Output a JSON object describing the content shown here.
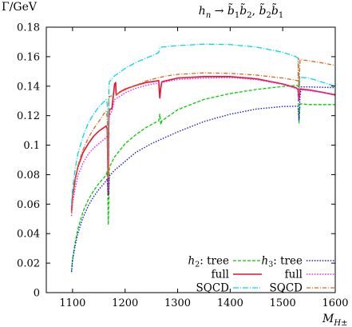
{
  "chart_data": {
    "type": "line",
    "title": "h_n → b̃₁b̃₂, b̃₂b̃₁",
    "title_parts": {
      "h": "h",
      "n": "n",
      "arrow": "→",
      "b": "b̃",
      "sub1": "1",
      "sub2": "2",
      "sep": ", "
    },
    "ylabel": "Γ/GeV",
    "xlabel_parts": {
      "M": "M",
      "sub": "H±"
    },
    "xlim": [
      1050,
      1600
    ],
    "ylim": [
      0,
      0.18
    ],
    "xticks": [
      1100,
      1200,
      1300,
      1400,
      1500,
      1600
    ],
    "yticks": [
      0,
      0.02,
      0.04,
      0.06,
      0.08,
      0.1,
      0.12,
      0.14,
      0.16,
      0.18
    ],
    "ytick_labels": [
      "0",
      "0.02",
      "0.04",
      "0.06",
      "0.08",
      "0.1",
      "0.12",
      "0.14",
      "0.16",
      "0.18"
    ],
    "grid": false,
    "legend_position": "bottom-right",
    "legend_groups": [
      {
        "label_h": "h",
        "label_sub": "2",
        "label_suffix": ": tree"
      },
      {
        "label_h": "h",
        "label_sub": "3",
        "label_suffix": ": tree"
      }
    ],
    "series": [
      {
        "name": "h2: tree",
        "legend_label": "tree",
        "group": 0,
        "color": "#00cc00",
        "dash": "4,2",
        "width": 1.3,
        "points": [
          [
            1098,
            0.014
          ],
          [
            1100,
            0.023
          ],
          [
            1105,
            0.034
          ],
          [
            1110,
            0.043
          ],
          [
            1120,
            0.055
          ],
          [
            1130,
            0.063
          ],
          [
            1140,
            0.069
          ],
          [
            1150,
            0.074
          ],
          [
            1160,
            0.078
          ],
          [
            1164,
            0.08
          ],
          [
            1166,
            0.082
          ],
          [
            1167,
            0.07
          ],
          [
            1168,
            0.046
          ],
          [
            1169,
            0.06
          ],
          [
            1170,
            0.085
          ],
          [
            1180,
            0.092
          ],
          [
            1200,
            0.101
          ],
          [
            1220,
            0.107
          ],
          [
            1240,
            0.112
          ],
          [
            1260,
            0.1158
          ],
          [
            1264,
            0.1165
          ],
          [
            1266,
            0.121
          ],
          [
            1268,
            0.114
          ],
          [
            1270,
            0.1165
          ],
          [
            1300,
            0.124
          ],
          [
            1350,
            0.131
          ],
          [
            1400,
            0.135
          ],
          [
            1450,
            0.1378
          ],
          [
            1500,
            0.1398
          ],
          [
            1525,
            0.1405
          ],
          [
            1529,
            0.1405
          ],
          [
            1531,
            0.115
          ],
          [
            1533,
            0.128
          ],
          [
            1550,
            0.1275
          ],
          [
            1600,
            0.1275
          ]
        ]
      },
      {
        "name": "full",
        "legend_label": "full",
        "group": 0,
        "color": "#e8112d",
        "dash": "",
        "width": 1.6,
        "points": [
          [
            1098,
            0.055
          ],
          [
            1100,
            0.065
          ],
          [
            1105,
            0.077
          ],
          [
            1110,
            0.085
          ],
          [
            1120,
            0.095
          ],
          [
            1130,
            0.101
          ],
          [
            1140,
            0.106
          ],
          [
            1150,
            0.1095
          ],
          [
            1160,
            0.112
          ],
          [
            1164,
            0.113
          ],
          [
            1166,
            0.111
          ],
          [
            1167,
            0.09
          ],
          [
            1168,
            0.066
          ],
          [
            1169,
            0.118
          ],
          [
            1170,
            0.124
          ],
          [
            1175,
            0.125
          ],
          [
            1180,
            0.1415
          ],
          [
            1182,
            0.1425
          ],
          [
            1183,
            0.134
          ],
          [
            1190,
            0.136
          ],
          [
            1200,
            0.138
          ],
          [
            1220,
            0.1405
          ],
          [
            1240,
            0.1425
          ],
          [
            1260,
            0.1435
          ],
          [
            1264,
            0.1438
          ],
          [
            1266,
            0.132
          ],
          [
            1268,
            0.139
          ],
          [
            1270,
            0.143
          ],
          [
            1300,
            0.1455
          ],
          [
            1350,
            0.1465
          ],
          [
            1400,
            0.1465
          ],
          [
            1450,
            0.145
          ],
          [
            1500,
            0.1415
          ],
          [
            1525,
            0.139
          ],
          [
            1529,
            0.138
          ],
          [
            1531,
            0.13
          ],
          [
            1533,
            0.138
          ],
          [
            1550,
            0.1375
          ],
          [
            1580,
            0.1355
          ],
          [
            1600,
            0.134
          ]
        ]
      },
      {
        "name": "SQCD",
        "legend_label": "SQCD",
        "group": 0,
        "color": "#00d8e8",
        "dash": "7,2,1,2",
        "width": 1.3,
        "points": [
          [
            1098,
            0.06
          ],
          [
            1100,
            0.07
          ],
          [
            1105,
            0.084
          ],
          [
            1110,
            0.094
          ],
          [
            1120,
            0.106
          ],
          [
            1130,
            0.115
          ],
          [
            1140,
            0.121
          ],
          [
            1150,
            0.126
          ],
          [
            1160,
            0.1295
          ],
          [
            1164,
            0.131
          ],
          [
            1166,
            0.128
          ],
          [
            1167,
            0.105
          ],
          [
            1168,
            0.08
          ],
          [
            1169,
            0.138
          ],
          [
            1170,
            0.143
          ],
          [
            1180,
            0.147
          ],
          [
            1200,
            0.152
          ],
          [
            1220,
            0.156
          ],
          [
            1240,
            0.159
          ],
          [
            1260,
            0.162
          ],
          [
            1264,
            0.163
          ],
          [
            1266,
            0.1655
          ],
          [
            1268,
            0.1665
          ],
          [
            1270,
            0.1665
          ],
          [
            1300,
            0.1675
          ],
          [
            1350,
            0.1685
          ],
          [
            1400,
            0.1682
          ],
          [
            1450,
            0.1665
          ],
          [
            1500,
            0.163
          ],
          [
            1525,
            0.16
          ],
          [
            1529,
            0.159
          ],
          [
            1531,
            0.135
          ],
          [
            1533,
            0.146
          ],
          [
            1550,
            0.1455
          ],
          [
            1600,
            0.14
          ]
        ]
      },
      {
        "name": "h3: tree",
        "legend_label": "tree",
        "group": 1,
        "color": "#1a1ad8",
        "dash": "1.5,1.8",
        "width": 1.4,
        "points": [
          [
            1098,
            0.014
          ],
          [
            1100,
            0.022
          ],
          [
            1105,
            0.032
          ],
          [
            1110,
            0.04
          ],
          [
            1120,
            0.051
          ],
          [
            1130,
            0.059
          ],
          [
            1140,
            0.065
          ],
          [
            1150,
            0.07
          ],
          [
            1160,
            0.074
          ],
          [
            1164,
            0.076
          ],
          [
            1166,
            0.077
          ],
          [
            1167,
            0.07
          ],
          [
            1168,
            0.066
          ],
          [
            1169,
            0.07
          ],
          [
            1170,
            0.079
          ],
          [
            1180,
            0.083
          ],
          [
            1200,
            0.089
          ],
          [
            1220,
            0.095
          ],
          [
            1250,
            0.101
          ],
          [
            1300,
            0.109
          ],
          [
            1350,
            0.116
          ],
          [
            1400,
            0.121
          ],
          [
            1450,
            0.1245
          ],
          [
            1500,
            0.1262
          ],
          [
            1525,
            0.1264
          ],
          [
            1529,
            0.1264
          ],
          [
            1531,
            0.117
          ],
          [
            1533,
            0.133
          ],
          [
            1535,
            0.1395
          ],
          [
            1550,
            0.1395
          ],
          [
            1600,
            0.139
          ]
        ]
      },
      {
        "name": "full",
        "legend_label": "full",
        "group": 1,
        "color": "#ee22ee",
        "dash": "1.5,1.8",
        "width": 1.4,
        "points": [
          [
            1098,
            0.052
          ],
          [
            1100,
            0.06
          ],
          [
            1105,
            0.071
          ],
          [
            1110,
            0.079
          ],
          [
            1120,
            0.088
          ],
          [
            1130,
            0.094
          ],
          [
            1140,
            0.098
          ],
          [
            1150,
            0.101
          ],
          [
            1160,
            0.104
          ],
          [
            1164,
            0.105
          ],
          [
            1166,
            0.106
          ],
          [
            1167,
            0.086
          ],
          [
            1168,
            0.07
          ],
          [
            1169,
            0.112
          ],
          [
            1170,
            0.12
          ],
          [
            1175,
            0.123
          ],
          [
            1180,
            0.131
          ],
          [
            1190,
            0.133
          ],
          [
            1200,
            0.1355
          ],
          [
            1220,
            0.1385
          ],
          [
            1240,
            0.1405
          ],
          [
            1260,
            0.142
          ],
          [
            1270,
            0.1425
          ],
          [
            1300,
            0.1445
          ],
          [
            1350,
            0.1455
          ],
          [
            1400,
            0.1458
          ],
          [
            1450,
            0.1445
          ],
          [
            1500,
            0.1412
          ],
          [
            1525,
            0.1385
          ],
          [
            1529,
            0.1378
          ],
          [
            1531,
            0.13
          ],
          [
            1533,
            0.1375
          ],
          [
            1550,
            0.137
          ],
          [
            1580,
            0.1355
          ],
          [
            1600,
            0.1345
          ]
        ]
      },
      {
        "name": "SQCD",
        "legend_label": "SQCD",
        "group": 1,
        "color": "#d96a1c",
        "dash": "5,2,1,2",
        "width": 1.3,
        "points": [
          [
            1098,
            0.054
          ],
          [
            1100,
            0.064
          ],
          [
            1105,
            0.076
          ],
          [
            1110,
            0.086
          ],
          [
            1120,
            0.097
          ],
          [
            1130,
            0.105
          ],
          [
            1140,
            0.111
          ],
          [
            1150,
            0.116
          ],
          [
            1160,
            0.1215
          ],
          [
            1164,
            0.123
          ],
          [
            1166,
            0.119
          ],
          [
            1167,
            0.1
          ],
          [
            1168,
            0.078
          ],
          [
            1169,
            0.13
          ],
          [
            1170,
            0.133
          ],
          [
            1180,
            0.134
          ],
          [
            1200,
            0.1375
          ],
          [
            1220,
            0.1405
          ],
          [
            1240,
            0.1435
          ],
          [
            1260,
            0.1455
          ],
          [
            1280,
            0.147
          ],
          [
            1300,
            0.148
          ],
          [
            1350,
            0.149
          ],
          [
            1400,
            0.1487
          ],
          [
            1450,
            0.1475
          ],
          [
            1500,
            0.1455
          ],
          [
            1525,
            0.144
          ],
          [
            1529,
            0.1435
          ],
          [
            1530,
            0.159
          ],
          [
            1531,
            0.136
          ],
          [
            1533,
            0.158
          ],
          [
            1550,
            0.1572
          ],
          [
            1580,
            0.1555
          ],
          [
            1600,
            0.154
          ]
        ]
      }
    ]
  }
}
